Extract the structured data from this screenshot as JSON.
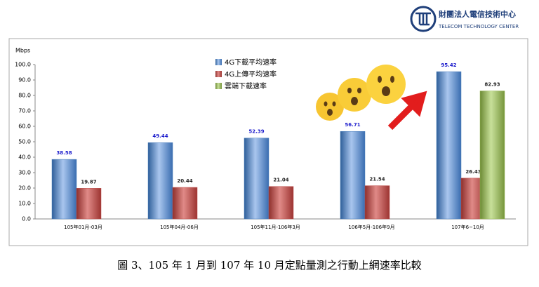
{
  "header": {
    "org_name": "財團法人電信技術中心",
    "org_name_en": "TELECOM TECHNOLOGY CENTER"
  },
  "chart_data": {
    "type": "bar",
    "y_label": "Mbps",
    "categories": [
      "105年01月-03月",
      "105年04月-06月",
      "105年11月-106年3月",
      "106年5月-106年9月",
      "107年6~10月"
    ],
    "series": [
      {
        "name": "4G下載平均速率",
        "color": "#4f81bd",
        "values": [
          38.58,
          49.44,
          52.39,
          56.71,
          95.42
        ]
      },
      {
        "name": "4G上傳平均速率",
        "color": "#c0504d",
        "values": [
          19.87,
          20.44,
          21.04,
          21.54,
          26.43
        ]
      },
      {
        "name": "雲端下載速率",
        "color": "#9bbb59",
        "values": [
          null,
          null,
          null,
          null,
          82.93
        ]
      }
    ],
    "ylim": [
      0,
      100
    ],
    "yticks": [
      {
        "value": 0,
        "label": "0.0"
      },
      {
        "value": 10,
        "label": "10.0"
      },
      {
        "value": 20,
        "label": "20.0"
      },
      {
        "value": 30,
        "label": "30.0"
      },
      {
        "value": 40,
        "label": "40.0"
      },
      {
        "value": 50,
        "label": "50.0"
      },
      {
        "value": 60,
        "label": "60.0"
      },
      {
        "value": 70,
        "label": "70.0"
      },
      {
        "value": 80,
        "label": "80.0"
      },
      {
        "value": 90,
        "label": "90.0"
      },
      {
        "value": 100,
        "label": "100.0"
      }
    ],
    "grid": false
  },
  "caption": "圖 3、105 年 1 月到 107 年 10 月定點量測之行動上網速率比較"
}
